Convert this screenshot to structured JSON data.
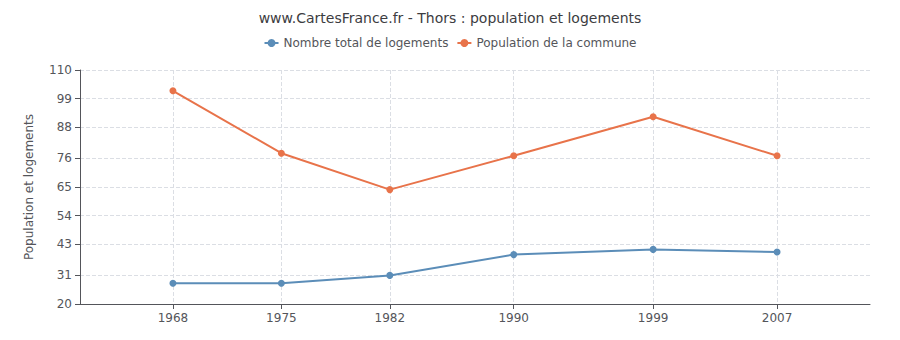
{
  "chart_data": {
    "type": "line",
    "title": "www.CartesFrance.fr - Thors : population et logements",
    "ylabel": "Population et logements",
    "x": [
      1968,
      1975,
      1982,
      1990,
      1999,
      2007
    ],
    "series": [
      {
        "name": "Nombre total de logements",
        "color": "#5b8db8",
        "values": [
          28,
          28,
          31,
          39,
          41,
          40
        ],
        "marker": "circle"
      },
      {
        "name": "Population de la commune",
        "color": "#e8734a",
        "values": [
          102,
          78,
          64,
          77,
          92,
          77
        ],
        "marker": "circle"
      }
    ],
    "xlim": [
      1962,
      2013
    ],
    "xticks": [
      1968,
      1975,
      1982,
      1990,
      1999,
      2007
    ],
    "ylim": [
      20,
      110
    ],
    "yticks": [
      20,
      31,
      43,
      54,
      65,
      76,
      88,
      99,
      110
    ],
    "grid": true,
    "legend": "upper center"
  }
}
